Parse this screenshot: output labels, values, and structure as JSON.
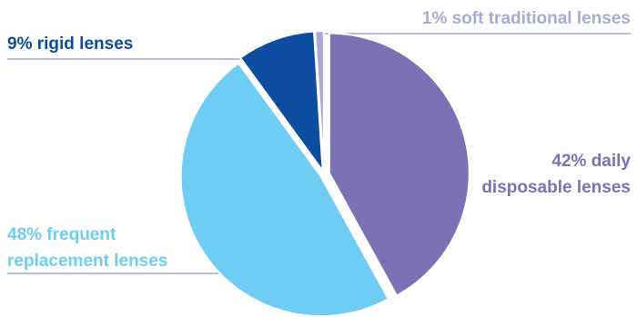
{
  "chart_data": {
    "type": "pie",
    "slices": [
      {
        "label_lines": [
          "42% daily",
          "disposable lenses"
        ],
        "value": 42,
        "color": "#7b72b5"
      },
      {
        "label_lines": [
          "48% frequent",
          "replacement lenses"
        ],
        "value": 48,
        "color": "#6fcdf3"
      },
      {
        "label_lines": [
          "9% rigid lenses"
        ],
        "value": 9,
        "color": "#0c4da0"
      },
      {
        "label_lines": [
          "1% soft traditional lenses"
        ],
        "value": 1,
        "color": "#a9a9d8"
      }
    ],
    "leader_color": "#7a7ab8"
  }
}
